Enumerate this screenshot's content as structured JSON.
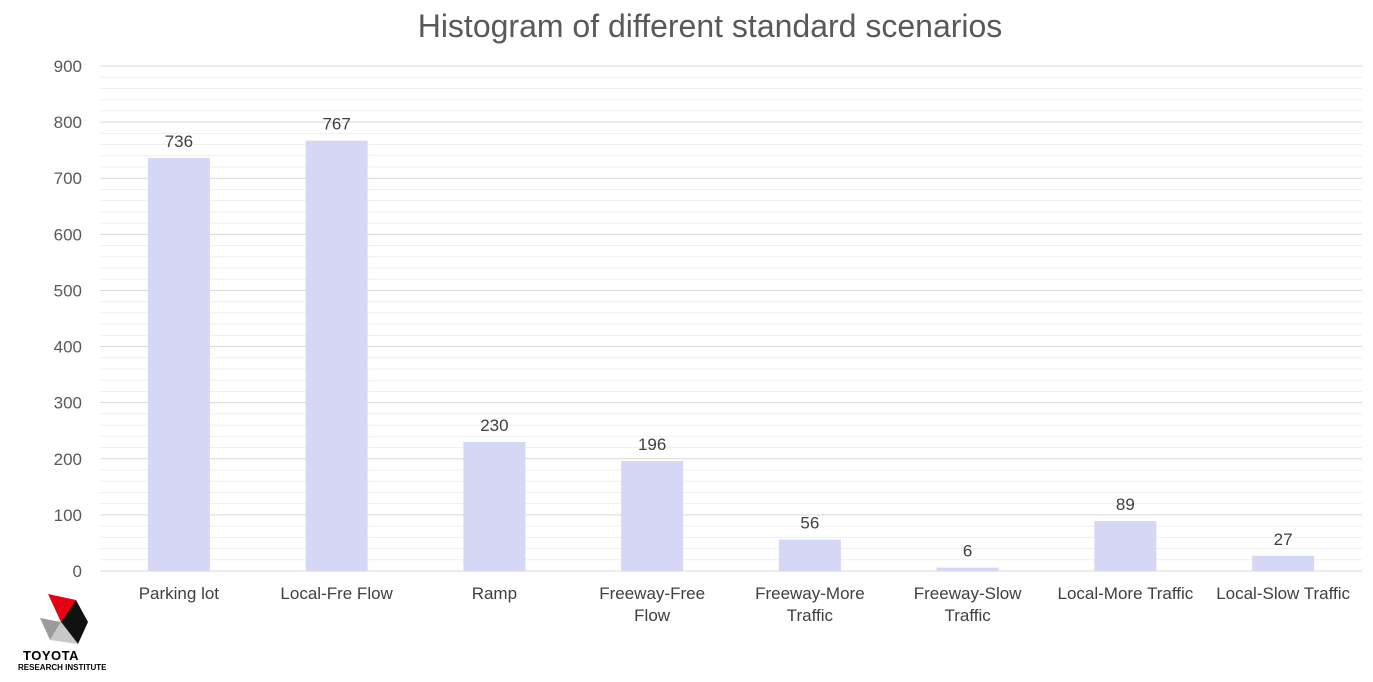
{
  "chart_data": {
    "type": "bar",
    "title": "Histogram of different standard scenarios",
    "categories": [
      [
        "Parking lot"
      ],
      [
        "Local-Fre Flow"
      ],
      [
        "Ramp"
      ],
      [
        "Freeway-Free",
        "Flow"
      ],
      [
        "Freeway-More",
        "Traffic"
      ],
      [
        "Freeway-Slow",
        "Traffic"
      ],
      [
        "Local-More Traffic"
      ],
      [
        "Local-Slow Traffic"
      ]
    ],
    "values": [
      736,
      767,
      230,
      196,
      56,
      6,
      89,
      27
    ],
    "ylim": [
      0,
      900
    ],
    "yticks": [
      0,
      100,
      200,
      300,
      400,
      500,
      600,
      700,
      800,
      900
    ],
    "grid": true,
    "bar_color": "#d6d7f5",
    "gridline_color": "#d9d9d9",
    "legend": "none"
  },
  "logo": {
    "brand": "TOYOTA",
    "subtitle": "RESEARCH INSTITUTE"
  }
}
